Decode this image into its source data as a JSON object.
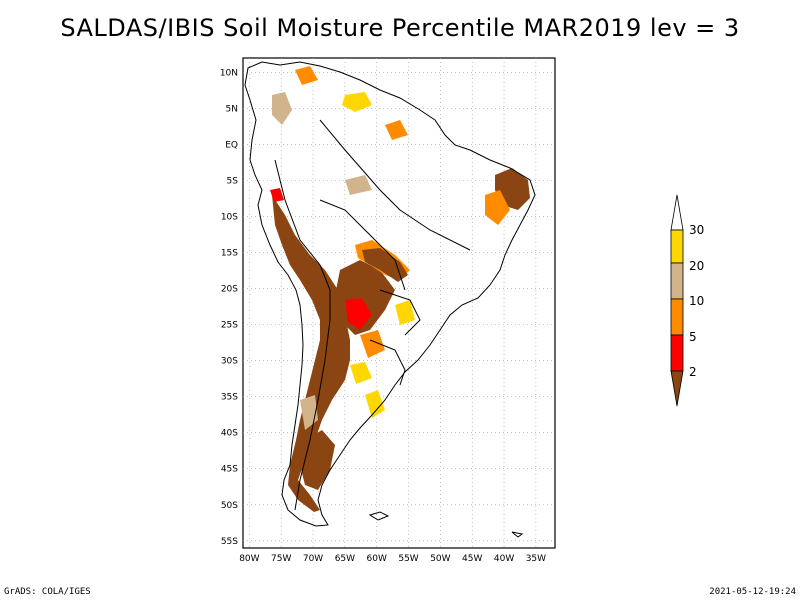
{
  "title": "SALDAS/IBIS Soil Moisture Percentile MAR2019 lev = 3",
  "credits": {
    "left": "GrADS: COLA/IGES",
    "right": "2021-05-12-19:24"
  },
  "map": {
    "lon_range": [
      -81,
      -32
    ],
    "lat_range": [
      -56,
      12
    ],
    "lon_ticks": [
      "80W",
      "75W",
      "70W",
      "65W",
      "60W",
      "55W",
      "50W",
      "45W",
      "40W",
      "35W"
    ],
    "lat_ticks": [
      "10N",
      "5N",
      "EQ",
      "5S",
      "10S",
      "15S",
      "20S",
      "25S",
      "30S",
      "35S",
      "40S",
      "45S",
      "50S",
      "55S"
    ],
    "gridlines": true
  },
  "legend": {
    "position": "right",
    "labels": [
      "30",
      "20",
      "10",
      "5",
      "2"
    ],
    "colors": [
      "#ffffff",
      "#ffd700",
      "#d2b48c",
      "#ff8c00",
      "#ff0000",
      "#8b4513"
    ],
    "classes": [
      {
        "range": ">30",
        "color": "#ffffff"
      },
      {
        "range": "20-30",
        "color": "#ffd700"
      },
      {
        "range": "10-20",
        "color": "#d2b48c"
      },
      {
        "range": "5-10",
        "color": "#ff8c00"
      },
      {
        "range": "2-5",
        "color": "#ff0000"
      },
      {
        "range": "<2",
        "color": "#8b4513"
      }
    ]
  }
}
